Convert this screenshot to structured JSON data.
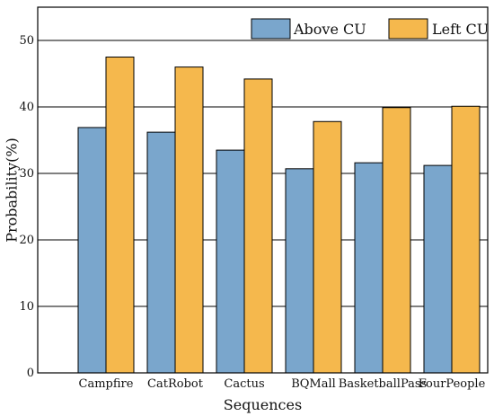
{
  "chart_data": {
    "type": "bar",
    "categories": [
      "Campfire",
      "CatRobot",
      "Cactus",
      "BQMall",
      "BasketballPass",
      "FourPeople"
    ],
    "series": [
      {
        "name": "Above CU",
        "values": [
          36.9,
          36.2,
          33.5,
          30.7,
          31.6,
          31.2
        ],
        "color": "#7aa6cc"
      },
      {
        "name": "Left CU",
        "values": [
          47.5,
          46.0,
          44.2,
          37.8,
          39.9,
          40.1
        ],
        "color": "#f5b84d"
      }
    ],
    "title": "",
    "xlabel": "Sequences",
    "ylabel": "Probability(%)",
    "ylim": [
      0,
      55
    ],
    "yticks": [
      0,
      10,
      20,
      30,
      40,
      50
    ],
    "grid": true,
    "legend_position": "top-right"
  }
}
